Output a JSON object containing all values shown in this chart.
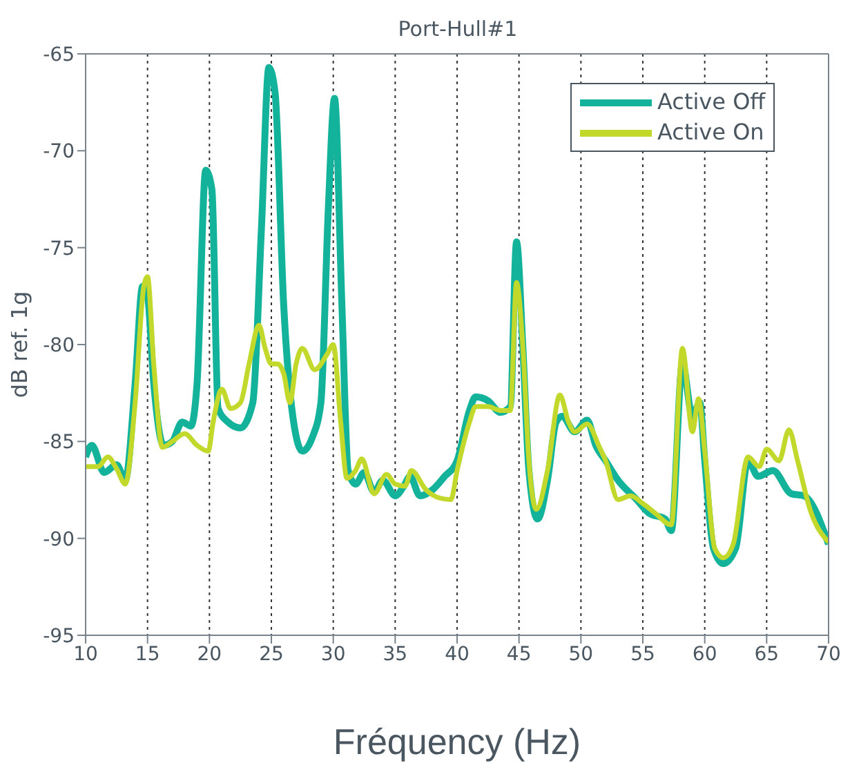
{
  "chart_data": {
    "type": "line",
    "title": "Port-Hull#1",
    "xlabel": "Fréquency (Hz)",
    "ylabel": "dB ref. 1g",
    "xlim": [
      10,
      70
    ],
    "xticks": [
      10,
      15,
      20,
      25,
      30,
      35,
      40,
      45,
      50,
      55,
      60,
      65,
      70
    ],
    "ylim": [
      -95,
      -65
    ],
    "yticks": [
      -95,
      -90,
      -85,
      -80,
      -75,
      -70,
      -65
    ],
    "grid": "x",
    "legend": "top right",
    "line_style": "solid",
    "marker": "none",
    "series": [
      {
        "name": "Active Off",
        "color": "#12b39a",
        "x": [
          10,
          10.5,
          11.5,
          12.5,
          13.2,
          14,
          14.6,
          15,
          15.5,
          16.3,
          17,
          17.8,
          18.5,
          19,
          19.7,
          20.2,
          20.7,
          21.5,
          22.5,
          23.5,
          24.2,
          24.8,
          25.3,
          26,
          26.8,
          27.5,
          28.3,
          29,
          29.6,
          30.1,
          30.7,
          31.2,
          31.8,
          32.5,
          33.3,
          34,
          35,
          35.7,
          36.2,
          37,
          38,
          39,
          40,
          41,
          41.5,
          42.5,
          43.5,
          44.3,
          44.8,
          45.3,
          45.8,
          46.5,
          47.3,
          48,
          48.5,
          49.5,
          50.5,
          51.2,
          52,
          53,
          54.5,
          55.5,
          56.8,
          57.3,
          58.2,
          59,
          59.6,
          60,
          60.7,
          61.5,
          62.5,
          63.5,
          64.3,
          65.5,
          67,
          68,
          70
        ],
        "values": [
          -85.8,
          -85.2,
          -86.6,
          -86.2,
          -87,
          -82,
          -77,
          -77.5,
          -82,
          -85.2,
          -85,
          -84,
          -84.2,
          -82,
          -71,
          -72,
          -83.3,
          -84,
          -84.3,
          -83,
          -74,
          -65.7,
          -67,
          -78,
          -84,
          -85.5,
          -84.8,
          -83,
          -73,
          -67.3,
          -78,
          -86.5,
          -87.2,
          -86.6,
          -87.6,
          -87,
          -87.8,
          -87.3,
          -86.8,
          -87.8,
          -87.5,
          -86.8,
          -86,
          -83.4,
          -82.7,
          -82.9,
          -83.5,
          -83.2,
          -74.7,
          -80,
          -86.5,
          -89,
          -87,
          -84,
          -83.7,
          -84.5,
          -83.9,
          -85.2,
          -86,
          -87,
          -88,
          -88.7,
          -89,
          -89.6,
          -81,
          -83.7,
          -83,
          -86,
          -90.5,
          -91.3,
          -90.5,
          -86,
          -86.8,
          -86.5,
          -87.7,
          -87.8,
          -90.3
        ]
      },
      {
        "name": "Active On",
        "color": "#c2d82b",
        "x": [
          10,
          11,
          11.8,
          12.5,
          13.2,
          14,
          14.7,
          15,
          15.5,
          16.2,
          17,
          18,
          19,
          19.9,
          20.3,
          21,
          21.7,
          22.5,
          23.2,
          24,
          24.5,
          25,
          25.5,
          26,
          26.5,
          27,
          27.5,
          28.5,
          29.5,
          30,
          30.6,
          31.1,
          31.8,
          32.3,
          33.3,
          34.3,
          35,
          35.8,
          36.3,
          37.5,
          38.5,
          39.5,
          40,
          41,
          41.5,
          42.5,
          43.5,
          44.3,
          44.8,
          45.3,
          45.8,
          46.4,
          47.3,
          48.3,
          49,
          49.5,
          50.5,
          51.5,
          52,
          53,
          54,
          55,
          56,
          57.3,
          58.2,
          59,
          59.5,
          60,
          60.8,
          61.5,
          62.3,
          63.5,
          64.4,
          65,
          66,
          66.8,
          67.5,
          68.5,
          70
        ],
        "values": [
          -86.3,
          -86.3,
          -85.8,
          -86.4,
          -87.2,
          -83,
          -77,
          -76.5,
          -81,
          -85.3,
          -85,
          -84.6,
          -85.2,
          -85.5,
          -84,
          -82.3,
          -83.3,
          -83,
          -81,
          -79,
          -80.2,
          -81,
          -81,
          -81.5,
          -83,
          -81,
          -80.2,
          -81.3,
          -80.5,
          -80,
          -84,
          -86.9,
          -86.5,
          -85.9,
          -87.7,
          -86.7,
          -87.2,
          -87.3,
          -86.5,
          -87.5,
          -87.9,
          -88,
          -86.5,
          -84,
          -83.2,
          -83.2,
          -83.4,
          -83.4,
          -76.8,
          -80,
          -86,
          -88.5,
          -86.5,
          -82.6,
          -84,
          -84.5,
          -84.1,
          -85.3,
          -86,
          -88,
          -87.8,
          -88.2,
          -88.7,
          -89.3,
          -80.2,
          -84.5,
          -82.8,
          -85.5,
          -90.5,
          -91,
          -90.3,
          -85.8,
          -86.3,
          -85.4,
          -86,
          -84.4,
          -86,
          -88.5,
          -90.2
        ]
      }
    ]
  }
}
